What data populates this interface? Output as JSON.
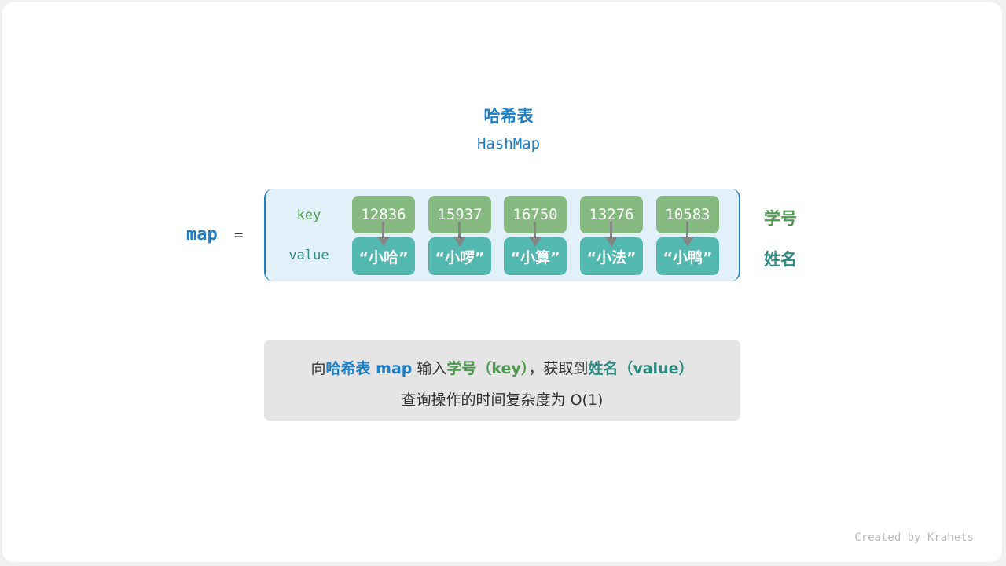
{
  "title": "哈希表",
  "subtitle": "HashMap",
  "map_label": "map",
  "equals": "=",
  "row_labels": {
    "key": "key",
    "value": "value"
  },
  "entries": [
    {
      "key": "12836",
      "value": "“小哈”"
    },
    {
      "key": "15937",
      "value": "“小啰”"
    },
    {
      "key": "16750",
      "value": "“小算”"
    },
    {
      "key": "13276",
      "value": "“小法”"
    },
    {
      "key": "10583",
      "value": "“小鸭”"
    }
  ],
  "side_labels": {
    "key": "学号",
    "value": "姓名"
  },
  "caption": {
    "line1": [
      {
        "text": "向",
        "color": "#333333"
      },
      {
        "text": "哈希表 map",
        "color": "#1f7fc6"
      },
      {
        "text": " 输入",
        "color": "#333333"
      },
      {
        "text": "学号（key）",
        "color": "#4e9a50"
      },
      {
        "text": "，获取到",
        "color": "#333333"
      },
      {
        "text": "姓名（value）",
        "color": "#2e8b80"
      }
    ],
    "line2": "查询操作的时间复杂度为 O(1)"
  },
  "footer": "Created by Krahets",
  "colors": {
    "blue": "#1f7fc6",
    "key_fill": "#86b97f",
    "value_fill": "#52b8b0",
    "key_text": "#4e9a50",
    "value_text": "#2e8b80"
  }
}
